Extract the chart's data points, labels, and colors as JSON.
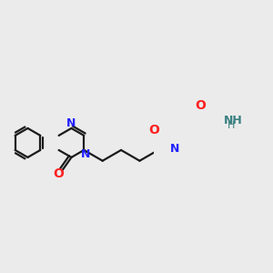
{
  "bg_color": "#ebebeb",
  "bond_color": "#1a1a1a",
  "N_color": "#2020ff",
  "O_color": "#ff2020",
  "NH2_color": "#3a8080",
  "lw": 1.6,
  "figsize": [
    3.0,
    3.0
  ],
  "dpi": 100,
  "xlim": [
    0.0,
    6.0
  ],
  "ylim": [
    -1.0,
    4.5
  ]
}
